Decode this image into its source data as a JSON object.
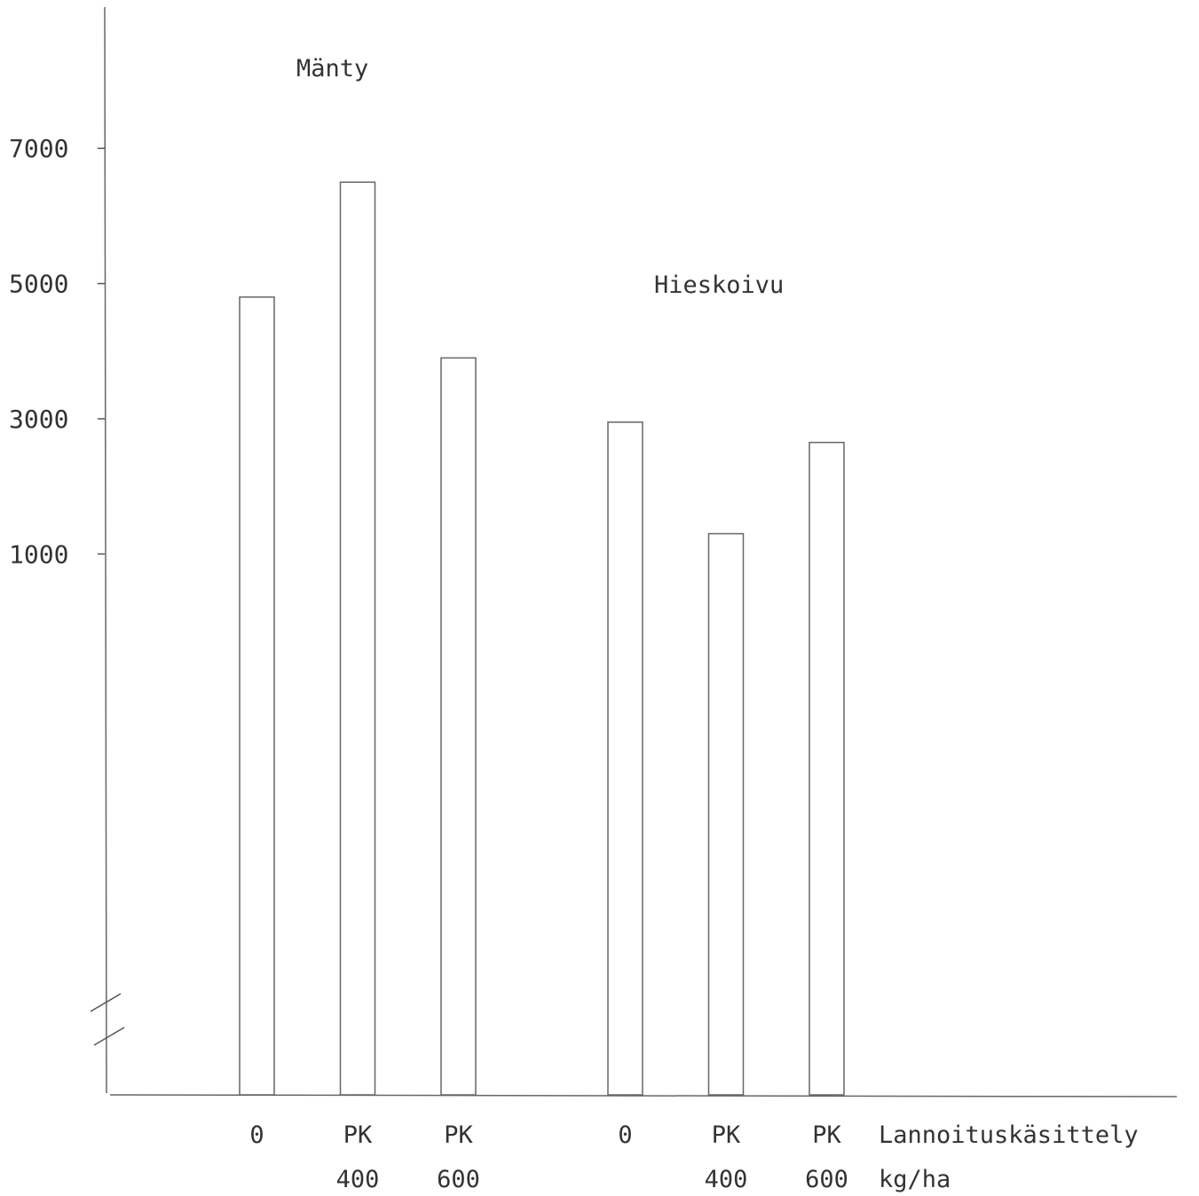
{
  "chart_data": {
    "type": "bar",
    "title": "",
    "xlabel": "Lannoituskäsittely",
    "xlabel_unit": "kg/ha",
    "ylabel": "",
    "ylim": [
      -7000,
      8000
    ],
    "y_axis_break": true,
    "yticks": [
      {
        "value": 1000,
        "label": "1000"
      },
      {
        "value": 3000,
        "label": "3000"
      },
      {
        "value": 5000,
        "label": "5000"
      },
      {
        "value": 7000,
        "label": "7000"
      }
    ],
    "groups": [
      {
        "name": "Mänty",
        "bars": [
          {
            "line1": "0",
            "line2": "",
            "value": 4800
          },
          {
            "line1": "PK",
            "line2": "400",
            "value": 6500
          },
          {
            "line1": "PK",
            "line2": "600",
            "value": 3900
          }
        ]
      },
      {
        "name": "Hieskoivu",
        "bars": [
          {
            "line1": "0",
            "line2": "",
            "value": 2950
          },
          {
            "line1": "PK",
            "line2": "400",
            "value": 1300
          },
          {
            "line1": "PK",
            "line2": "600",
            "value": 2650
          }
        ]
      }
    ],
    "grid": false,
    "legend": "none",
    "colors": {
      "line": "#555555",
      "fill": "#ffffff",
      "text": "#333333"
    }
  }
}
